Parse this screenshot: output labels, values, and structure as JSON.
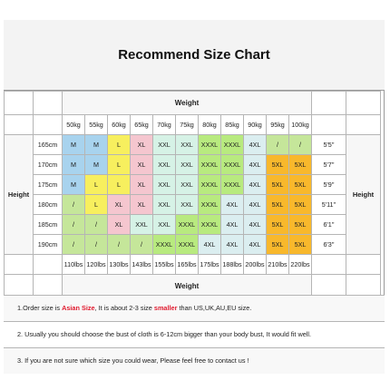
{
  "title": "Recommend Size Chart",
  "weight_label": "Weight",
  "height_label": "Height",
  "weights": [
    "50kg",
    "55kg",
    "60kg",
    "65kg",
    "70kg",
    "75kg",
    "80kg",
    "85kg",
    "90kg",
    "95kg",
    "100kg"
  ],
  "lbs": [
    "110lbs",
    "120lbs",
    "130lbs",
    "143lbs",
    "155lbs",
    "165lbs",
    "175lbs",
    "188lbs",
    "200lbs",
    "210lbs",
    "220lbs"
  ],
  "rows": [
    {
      "cm": "165cm",
      "ft": "5'5''",
      "cells": [
        "M",
        "M",
        "L",
        "XL",
        "XXL",
        "XXL",
        "XXXL",
        "XXXL",
        "4XL",
        "/",
        "/"
      ]
    },
    {
      "cm": "170cm",
      "ft": "5'7''",
      "cells": [
        "M",
        "M",
        "L",
        "XL",
        "XXL",
        "XXL",
        "XXXL",
        "XXXL",
        "4XL",
        "5XL",
        "5XL"
      ]
    },
    {
      "cm": "175cm",
      "ft": "5'9''",
      "cells": [
        "M",
        "L",
        "L",
        "XL",
        "XXL",
        "XXL",
        "XXXL",
        "XXXL",
        "4XL",
        "5XL",
        "5XL"
      ]
    },
    {
      "cm": "180cm",
      "ft": "5'11''",
      "cells": [
        "/",
        "L",
        "XL",
        "XL",
        "XXL",
        "XXL",
        "XXXL",
        "4XL",
        "4XL",
        "5XL",
        "5XL"
      ]
    },
    {
      "cm": "185cm",
      "ft": "6'1''",
      "cells": [
        "/",
        "/",
        "XL",
        "XXL",
        "XXL",
        "XXXL",
        "XXXL",
        "4XL",
        "4XL",
        "5XL",
        "5XL"
      ]
    },
    {
      "cm": "190cm",
      "ft": "6'3''",
      "cells": [
        "/",
        "/",
        "/",
        "/",
        "XXXL",
        "XXXL",
        "4XL",
        "4XL",
        "4XL",
        "5XL",
        "5XL"
      ]
    }
  ],
  "colors": {
    "M": "#a8d3ee",
    "L": "#f7ef5e",
    "XL": "#f5c6cf",
    "XXL": "#d6f2e6",
    "XXXL": "#b8ea7f",
    "4XL": "#dbeef0",
    "5XL": "#f8b82c",
    "slash": "#c5e69a"
  },
  "notes": {
    "n1_a": "1.Order size is ",
    "n1_b": "Asian Size",
    "n1_c": ", It is about 2-3 size ",
    "n1_d": "smaller",
    "n1_e": " than US,UK,AU,EU size.",
    "n2": "2. Usually you should choose the bust of cloth is 6-12cm bigger than your body bust, It would fit well.",
    "n3": "3. If you are not sure which size you could wear, Please feel free to contact us !"
  }
}
